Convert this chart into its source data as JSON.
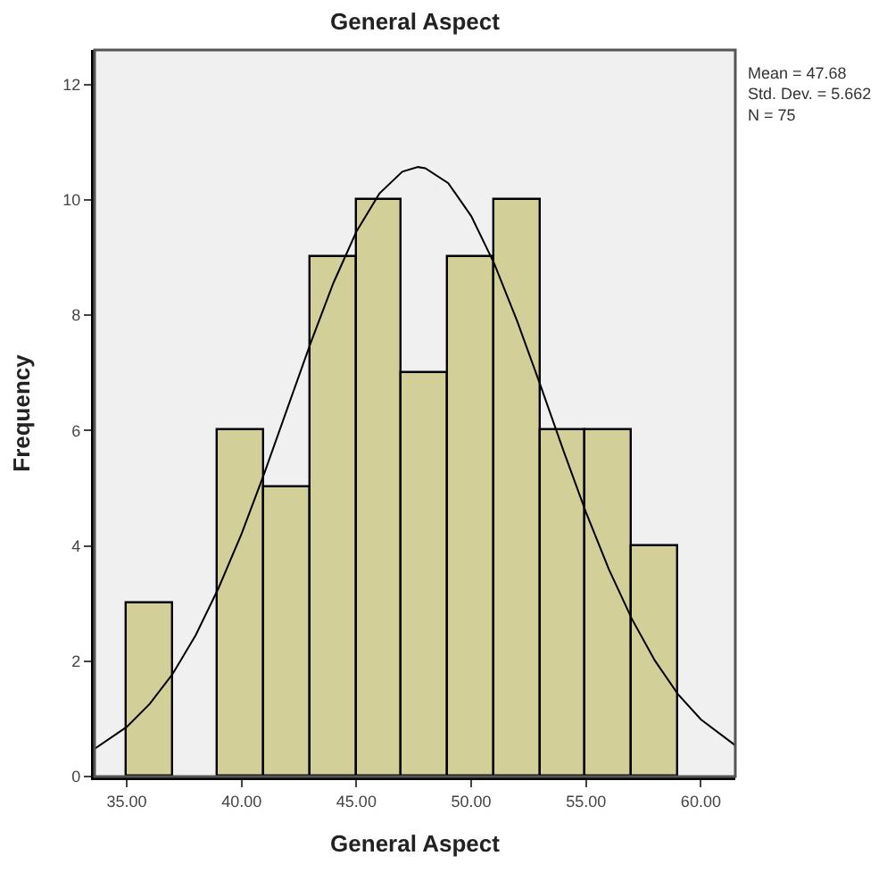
{
  "chart_data": {
    "type": "histogram",
    "title": "General Aspect",
    "xlabel": "General Aspect",
    "ylabel": "Frequency",
    "bins": [
      35,
      37,
      39,
      41,
      43,
      45,
      47,
      49,
      51,
      53,
      55,
      57,
      59
    ],
    "values": [
      3,
      0,
      6,
      5,
      9,
      10,
      7,
      9,
      10,
      6,
      6,
      4
    ],
    "color": "#d3cf99",
    "series": [
      {
        "type": "line",
        "color": "#000000",
        "x": [
          33.6,
          35,
          36,
          37,
          38,
          39,
          40,
          41,
          42,
          43,
          44,
          45,
          46,
          47,
          47.68,
          48,
          49,
          50,
          51,
          52,
          53,
          54,
          55,
          56,
          57,
          58,
          59,
          60,
          61.5
        ],
        "values": [
          0.48,
          0.86,
          1.26,
          1.78,
          2.45,
          3.27,
          4.21,
          5.27,
          6.39,
          7.51,
          8.56,
          9.45,
          10.11,
          10.49,
          10.57,
          10.55,
          10.29,
          9.72,
          8.9,
          7.9,
          6.8,
          5.67,
          4.58,
          3.59,
          2.73,
          2.01,
          1.43,
          0.99,
          0.54
        ]
      }
    ],
    "annotations": [
      "Mean = 47.68\nStd. Dev. = 5.662\nN = 75"
    ],
    "xlim": [
      33.6,
      61.5
    ],
    "ylim": [
      0,
      12.6
    ],
    "xticks": [
      {
        "value": 35,
        "label": "35.00"
      },
      {
        "value": 40,
        "label": "40.00"
      },
      {
        "value": 45,
        "label": "45.00"
      },
      {
        "value": 50,
        "label": "50.00"
      },
      {
        "value": 55,
        "label": "55.00"
      },
      {
        "value": 60,
        "label": "60.00"
      }
    ],
    "yticks": [
      0,
      2,
      4,
      6,
      8,
      10,
      12
    ],
    "grid": false
  }
}
